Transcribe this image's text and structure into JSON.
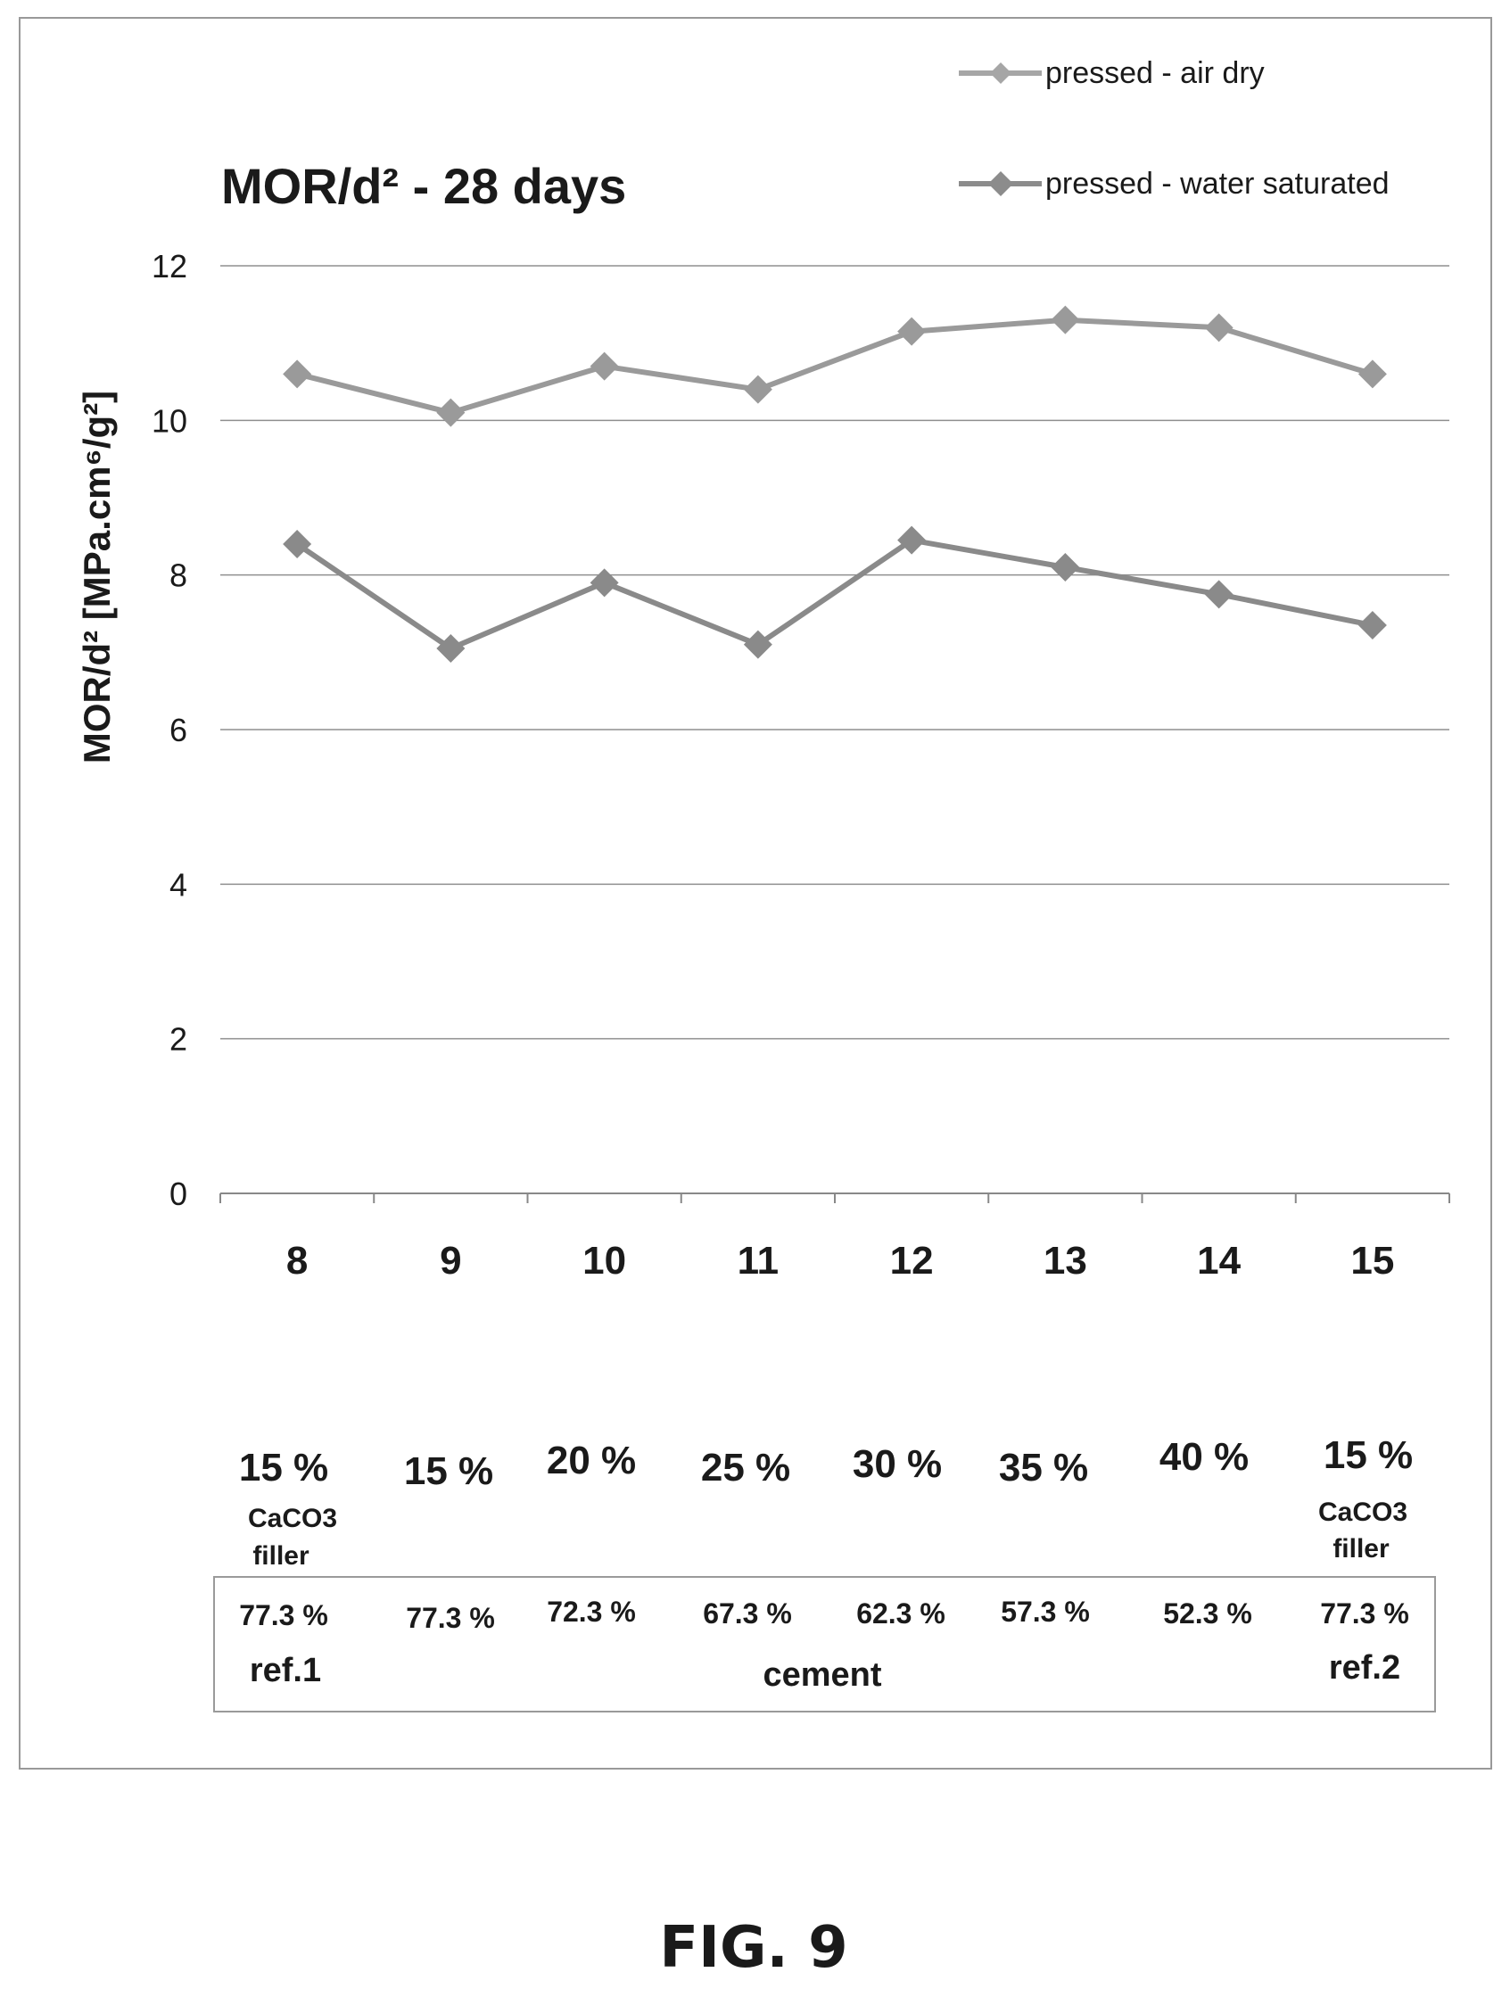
{
  "chart_data": {
    "type": "line",
    "title": "MOR/d² - 28 days",
    "ylabel": "MOR/d² [MPa.cm⁶/g²]",
    "ylim": [
      0,
      12
    ],
    "yticks": [
      "0",
      "2",
      "4",
      "6",
      "8",
      "10",
      "12"
    ],
    "ytick_values": [
      0,
      2,
      4,
      6,
      8,
      10,
      12
    ],
    "grid": true,
    "legend_position": "top-right",
    "categories": [
      "8",
      "9",
      "10",
      "11",
      "12",
      "13",
      "14",
      "15"
    ],
    "series": [
      {
        "name": "pressed - air dry",
        "color": "#9a9a9a",
        "values": [
          10.6,
          10.1,
          10.7,
          10.4,
          11.15,
          11.3,
          11.2,
          10.6
        ]
      },
      {
        "name": "pressed - water saturated",
        "color": "#8a8a8a",
        "values": [
          8.4,
          7.05,
          7.9,
          7.1,
          8.45,
          8.1,
          7.75,
          7.35
        ]
      }
    ]
  },
  "filler_pct": [
    "15 %",
    "15 %",
    "20 %",
    "25 %",
    "30 %",
    "35 %",
    "40 %",
    "15 %"
  ],
  "filler_note": [
    "CaCO3",
    "filler"
  ],
  "cement_pct": [
    "77.3 %",
    "77.3 %",
    "72.3 %",
    "67.3 %",
    "62.3 %",
    "57.3 %",
    "52.3 %",
    "77.3 %"
  ],
  "ref_labels": [
    "ref.1",
    "ref.2"
  ],
  "cement_label": "cement",
  "figure_label": "FIG. 9"
}
